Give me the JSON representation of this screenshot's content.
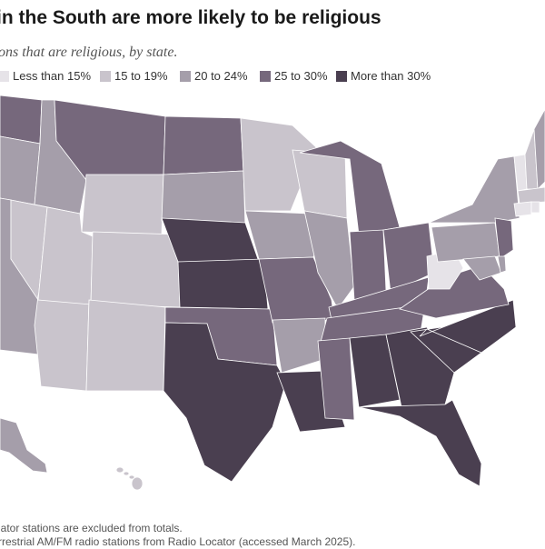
{
  "title": "in the South are more likely to be religious",
  "subtitle": "ons that are religious, by state.",
  "legend": [
    {
      "label": "Less than 15%",
      "color": "#e6e3e8"
    },
    {
      "label": "15 to 19%",
      "color": "#c9c4cc"
    },
    {
      "label": "20 to 24%",
      "color": "#a59eaa"
    },
    {
      "label": "25 to 30%",
      "color": "#76687c"
    },
    {
      "label": "More than 30%",
      "color": "#4a3f50"
    }
  ],
  "notes": [
    "lator stations are excluded from totals.",
    "rrestrial AM/FM radio stations from Radio Locator (accessed March 2025)."
  ],
  "map_states": [
    {
      "id": "WA",
      "bin": 3
    },
    {
      "id": "OR",
      "bin": 2
    },
    {
      "id": "CA",
      "bin": 2
    },
    {
      "id": "ID",
      "bin": 2
    },
    {
      "id": "NV",
      "bin": 1
    },
    {
      "id": "AZ",
      "bin": 1
    },
    {
      "id": "MT",
      "bin": 3
    },
    {
      "id": "WY",
      "bin": 1
    },
    {
      "id": "UT",
      "bin": 1
    },
    {
      "id": "CO",
      "bin": 1
    },
    {
      "id": "NM",
      "bin": 1
    },
    {
      "id": "ND",
      "bin": 3
    },
    {
      "id": "SD",
      "bin": 2
    },
    {
      "id": "NE",
      "bin": 4
    },
    {
      "id": "KS",
      "bin": 4
    },
    {
      "id": "OK",
      "bin": 3
    },
    {
      "id": "TX",
      "bin": 4
    },
    {
      "id": "MN",
      "bin": 1
    },
    {
      "id": "IA",
      "bin": 2
    },
    {
      "id": "MO",
      "bin": 3
    },
    {
      "id": "AR",
      "bin": 2
    },
    {
      "id": "LA",
      "bin": 4
    },
    {
      "id": "WI",
      "bin": 1
    },
    {
      "id": "IL",
      "bin": 2
    },
    {
      "id": "MI",
      "bin": 3
    },
    {
      "id": "IN",
      "bin": 3
    },
    {
      "id": "OH",
      "bin": 3
    },
    {
      "id": "KY",
      "bin": 3
    },
    {
      "id": "TN",
      "bin": 3
    },
    {
      "id": "MS",
      "bin": 3
    },
    {
      "id": "AL",
      "bin": 4
    },
    {
      "id": "GA",
      "bin": 4
    },
    {
      "id": "FL",
      "bin": 4
    },
    {
      "id": "SC",
      "bin": 4
    },
    {
      "id": "NC",
      "bin": 4
    },
    {
      "id": "VA",
      "bin": 3
    },
    {
      "id": "WV",
      "bin": 0
    },
    {
      "id": "PA",
      "bin": 2
    },
    {
      "id": "NY",
      "bin": 2
    },
    {
      "id": "NJ",
      "bin": 3
    },
    {
      "id": "MD",
      "bin": 2
    },
    {
      "id": "DE",
      "bin": 2
    },
    {
      "id": "VT",
      "bin": 0
    },
    {
      "id": "NH",
      "bin": 1
    },
    {
      "id": "ME",
      "bin": 2
    },
    {
      "id": "MA",
      "bin": 1
    },
    {
      "id": "CT",
      "bin": 0
    },
    {
      "id": "RI",
      "bin": 0
    },
    {
      "id": "AK",
      "bin": 2
    },
    {
      "id": "HI",
      "bin": 1
    }
  ]
}
